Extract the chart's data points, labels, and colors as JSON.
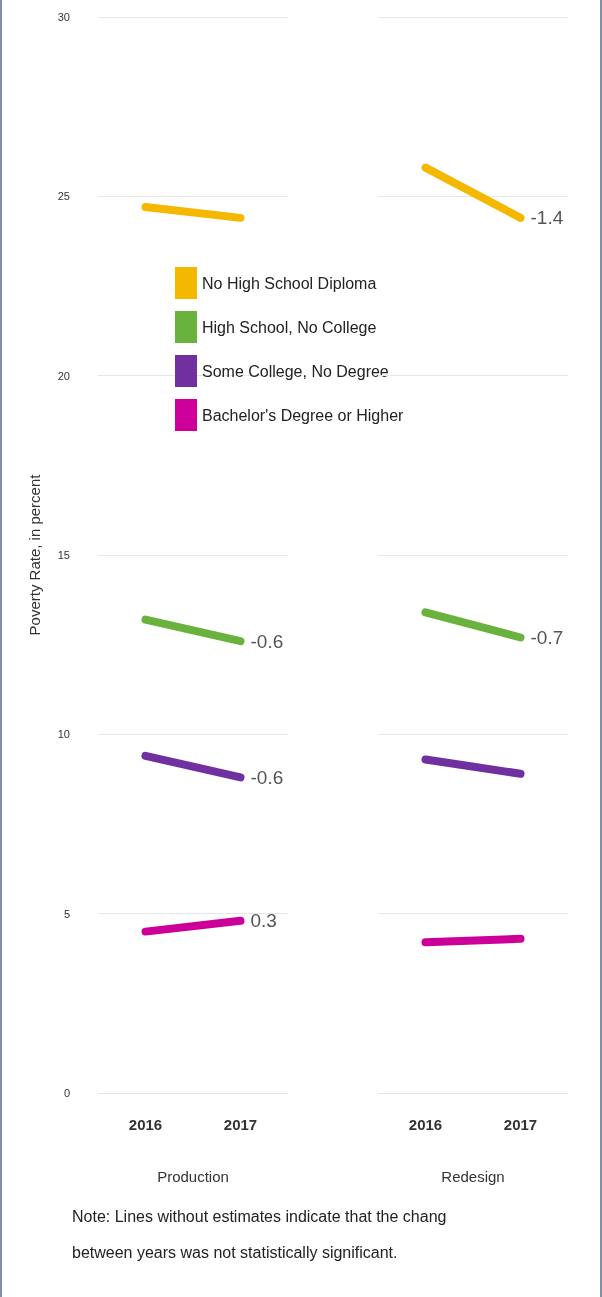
{
  "chart_data": [
    {
      "type": "line",
      "categories": [
        "2016",
        "2017"
      ],
      "xlabel": "Production",
      "ylabel": "Poverty Rate, in percent",
      "ylim": [
        0,
        30
      ],
      "yticks": [
        0,
        5,
        10,
        15,
        20,
        25,
        30
      ],
      "grid": "y",
      "legend": "top right",
      "series": [
        {
          "name": "No High School Diploma",
          "color": "#f5b800",
          "values": [
            24.7,
            24.4
          ]
        },
        {
          "name": "High School, No College",
          "color": "#6ab23e",
          "values": [
            13.2,
            12.6
          ]
        },
        {
          "name": "Some College, No Degree",
          "color": "#7030a0",
          "values": [
            9.4,
            8.8
          ]
        },
        {
          "name": "Bachelor's Degree or Higher",
          "color": "#cc0099",
          "values": [
            4.5,
            4.8
          ]
        }
      ],
      "annotations": [
        {
          "text": "-0.6",
          "x": "2017",
          "y": 12.6
        },
        {
          "text": "-0.6",
          "x": "2017",
          "y": 8.8
        },
        {
          "text": "0.3",
          "x": "2017",
          "y": 4.8
        },
        "Note: Lines without estimates indicate that the chang",
        "between years was not statistically significant."
      ]
    },
    {
      "type": "line",
      "categories": [
        "2016",
        "2017"
      ],
      "xlabel": "Redesign",
      "ylim": [
        0,
        30
      ],
      "yticks": [
        0,
        5,
        10,
        15,
        20,
        25,
        30
      ],
      "grid": "y",
      "tick_labels": "x",
      "series": [
        {
          "color": "#f5b800",
          "values": [
            25.8,
            24.4
          ]
        },
        {
          "color": "#6ab23e",
          "values": [
            13.4,
            12.7
          ]
        },
        {
          "color": "#7030a0",
          "values": [
            9.3,
            8.9
          ]
        },
        {
          "color": "#cc0099",
          "values": [
            4.2,
            4.3
          ]
        }
      ],
      "annotations": [
        {
          "text": "-1.4",
          "x": "2017",
          "y": 24.4
        },
        {
          "text": "-0.7",
          "x": "2017",
          "y": 12.7
        }
      ]
    }
  ]
}
